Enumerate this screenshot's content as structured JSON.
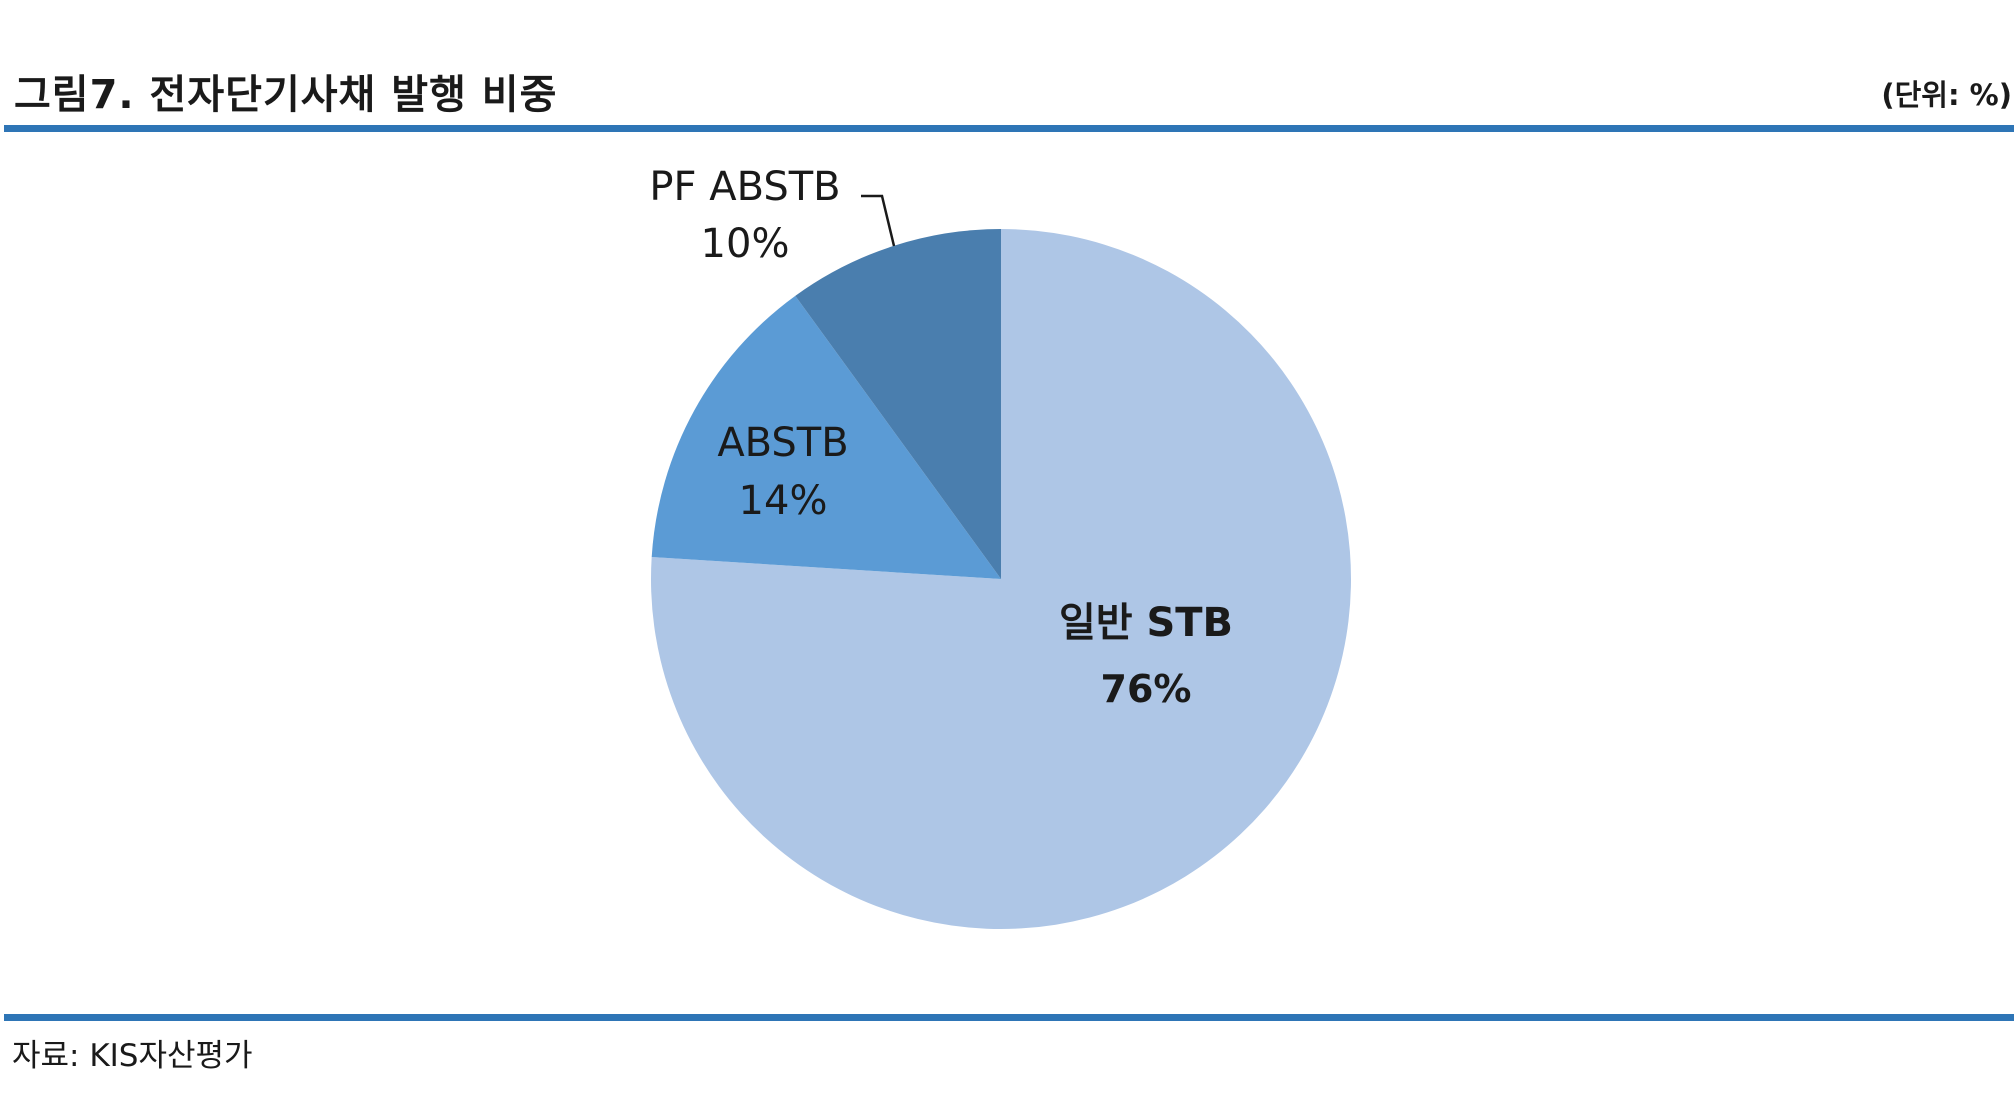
{
  "header": {
    "title": "그림7. 전자단기사채 발행 비중",
    "unit": "(단위: %)"
  },
  "footer": {
    "source": "자료: KIS자산평가"
  },
  "chart_data": {
    "type": "pie",
    "start_angle_deg": 0,
    "direction": "clockwise",
    "slices": [
      {
        "label": "일반 STB",
        "value": 76,
        "value_label": "76%",
        "color": "#aec6e6"
      },
      {
        "label": "ABSTB",
        "value": 14,
        "value_label": "14%",
        "color": "#5b9bd5"
      },
      {
        "label": "PF ABSTB",
        "value": 10,
        "value_label": "10%",
        "color": "#4a7eae"
      }
    ]
  }
}
